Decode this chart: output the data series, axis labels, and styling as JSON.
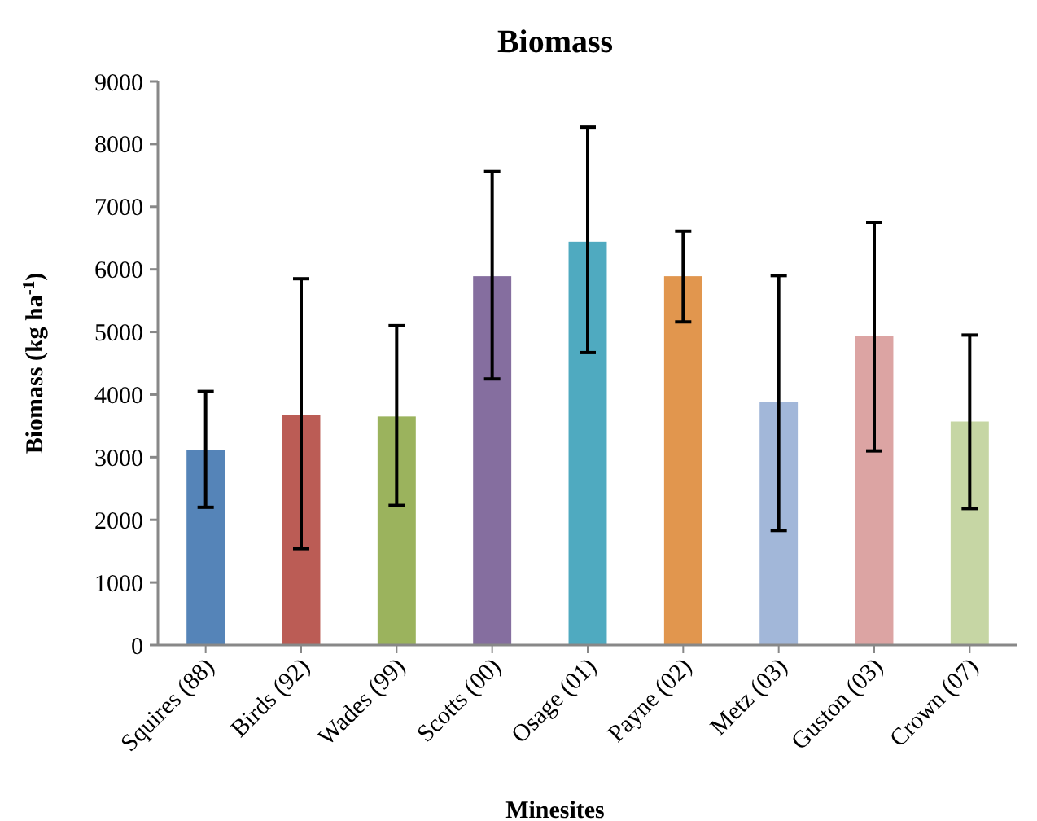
{
  "chart_data": {
    "type": "bar",
    "title": "Biomass",
    "xlabel": "Minesites",
    "ylabel": "Biomass (kg ha$^{-1}$)",
    "categories": [
      "Squires (88)",
      "Birds (92)",
      "Wades (99)",
      "Scotts (00)",
      "Osage (01)",
      "Payne (02)",
      "Metz (03)",
      "Guston (03)",
      "Crown (07)"
    ],
    "values": [
      3120,
      3670,
      3650,
      5890,
      6440,
      5890,
      3880,
      4940,
      3570
    ],
    "colors": [
      "#5584b8",
      "#bb5c55",
      "#9bb35d",
      "#856e9f",
      "#4faac0",
      "#e1964e",
      "#a2b7d9",
      "#dca4a3",
      "#c6d6a4"
    ],
    "errors": [
      [
        2200,
        4050
      ],
      [
        1540,
        5850
      ],
      [
        2230,
        5100
      ],
      [
        4250,
        7560
      ],
      [
        4670,
        8270
      ],
      [
        5160,
        6610
      ],
      [
        1830,
        5900
      ],
      [
        3100,
        6750
      ],
      [
        2180,
        4950
      ]
    ],
    "ylim": [
      0,
      9000
    ],
    "yticks": [
      0,
      1000,
      2000,
      3000,
      4000,
      5000,
      6000,
      7000,
      8000,
      9000
    ],
    "grid": false
  }
}
